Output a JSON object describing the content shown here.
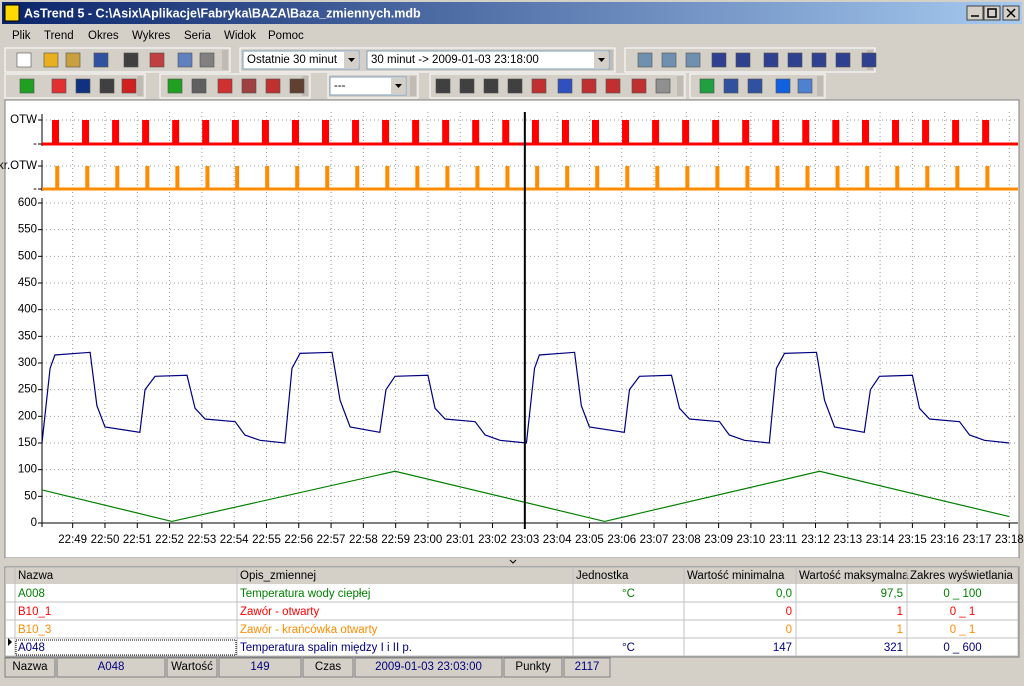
{
  "window": {
    "title": "AsTrend 5 - C:\\Asix\\Aplikacje\\Fabryka\\BAZA\\Baza_zmiennych.mdb"
  },
  "menu": [
    "Plik",
    "Trend",
    "Okres",
    "Wykres",
    "Seria",
    "Widok",
    "Pomoc"
  ],
  "toolbar": {
    "period": "Ostatnie 30 minut",
    "range": "30 minut  ->  2009-01-03  23:18:00",
    "style": "---"
  },
  "chart_data": {
    "type": "line",
    "tracks": [
      {
        "color": "#ff0000",
        "yticks": [
          {
            "value": 0,
            "label": "-"
          },
          {
            "value": 1,
            "label": "OTW"
          }
        ],
        "x": [
          1368.36,
          1369.29,
          1370.22,
          1371.15,
          1372.08,
          1373.01,
          1373.93,
          1374.86,
          1375.79,
          1376.72,
          1377.65,
          1378.58,
          1379.51,
          1380.44,
          1381.37,
          1382.3,
          1383.22,
          1384.15,
          1385.08,
          1386.01,
          1386.94,
          1387.87,
          1388.8,
          1389.73,
          1390.66,
          1391.59,
          1392.52,
          1393.44,
          1394.37,
          1395.3,
          1396.23,
          1397.16
        ],
        "values": [
          1,
          1,
          1,
          1,
          1,
          1,
          1,
          1,
          1,
          1,
          1,
          1,
          1,
          1,
          1,
          1,
          1,
          1,
          1,
          1,
          1,
          1,
          1,
          1,
          1,
          1,
          1,
          1,
          1,
          1,
          1,
          1
        ]
      },
      {
        "color": "#ff8c00",
        "yticks": [
          {
            "value": 0,
            "label": "-"
          },
          {
            "value": 1,
            "label": "kr.OTW"
          }
        ],
        "x": [
          1368.46,
          1369.39,
          1370.32,
          1371.25,
          1372.18,
          1373.11,
          1374.03,
          1374.96,
          1375.89,
          1376.82,
          1377.75,
          1378.68,
          1379.61,
          1380.54,
          1381.47,
          1382.4,
          1383.32,
          1384.25,
          1385.18,
          1386.11,
          1387.04,
          1387.97,
          1388.9,
          1389.83,
          1390.76,
          1391.69,
          1392.62,
          1393.54,
          1394.47,
          1395.4,
          1396.33,
          1397.26
        ],
        "values": [
          1,
          1,
          1,
          1,
          1,
          1,
          1,
          1,
          1,
          1,
          1,
          1,
          1,
          1,
          1,
          1,
          1,
          1,
          1,
          1,
          1,
          1,
          1,
          1,
          1,
          1,
          1,
          1,
          1,
          1,
          1,
          1
        ]
      }
    ],
    "series": [
      {
        "color": "#000080",
        "x": [
          1368.05,
          1368.3,
          1368.45,
          1369.54,
          1369.75,
          1370.0,
          1371.08,
          1371.24,
          1371.55,
          1372.54,
          1372.79,
          1373.1,
          1374.03,
          1374.33,
          1374.8,
          1375.57,
          1375.79,
          1376.04,
          1377.03,
          1377.28,
          1377.59,
          1378.51,
          1378.7,
          1378.98,
          1380.0,
          1380.22,
          1380.53,
          1381.46,
          1381.77,
          1382.23,
          1383.05,
          1383.3,
          1383.45,
          1384.54,
          1384.75,
          1385.0,
          1386.08,
          1386.24,
          1386.55,
          1387.54,
          1387.79,
          1388.1,
          1389.03,
          1389.33,
          1389.8,
          1390.57,
          1390.79,
          1391.04,
          1392.03,
          1392.28,
          1392.59,
          1393.51,
          1393.7,
          1393.98,
          1395.0,
          1395.22,
          1395.53,
          1396.46,
          1396.77,
          1397.23,
          1398.0
        ],
        "values": [
          150,
          290,
          315,
          320,
          220,
          180,
          170,
          250,
          275,
          277,
          215,
          195,
          190,
          165,
          155,
          150,
          290,
          318,
          320,
          230,
          180,
          170,
          250,
          275,
          277,
          215,
          195,
          190,
          165,
          155,
          150,
          290,
          315,
          320,
          220,
          180,
          170,
          250,
          275,
          277,
          215,
          195,
          190,
          165,
          155,
          150,
          290,
          318,
          320,
          230,
          180,
          170,
          250,
          275,
          277,
          215,
          195,
          190,
          165,
          155,
          150
        ]
      },
      {
        "color": "#008000",
        "x": [
          1368.05,
          1372.07,
          1378.98,
          1385.47,
          1392.13,
          1398.0
        ],
        "values": [
          62,
          3,
          97,
          3,
          97,
          12
        ]
      }
    ],
    "xlim": [
      1368.05,
      1398.27
    ],
    "xticks": [
      {
        "value": 1369,
        "label": "22:49"
      },
      {
        "value": 1370,
        "label": "22:50"
      },
      {
        "value": 1371,
        "label": "22:51"
      },
      {
        "value": 1372,
        "label": "22:52"
      },
      {
        "value": 1373,
        "label": "22:53"
      },
      {
        "value": 1374,
        "label": "22:54"
      },
      {
        "value": 1375,
        "label": "22:55"
      },
      {
        "value": 1376,
        "label": "22:56"
      },
      {
        "value": 1377,
        "label": "22:57"
      },
      {
        "value": 1378,
        "label": "22:58"
      },
      {
        "value": 1379,
        "label": "22:59"
      },
      {
        "value": 1380,
        "label": "23:00"
      },
      {
        "value": 1381,
        "label": "23:01"
      },
      {
        "value": 1382,
        "label": "23:02"
      },
      {
        "value": 1383,
        "label": "23:03"
      },
      {
        "value": 1384,
        "label": "23:04"
      },
      {
        "value": 1385,
        "label": "23:05"
      },
      {
        "value": 1386,
        "label": "23:06"
      },
      {
        "value": 1387,
        "label": "23:07"
      },
      {
        "value": 1388,
        "label": "23:08"
      },
      {
        "value": 1389,
        "label": "23:09"
      },
      {
        "value": 1390,
        "label": "23:10"
      },
      {
        "value": 1391,
        "label": "23:11"
      },
      {
        "value": 1392,
        "label": "23:12"
      },
      {
        "value": 1393,
        "label": "23:13"
      },
      {
        "value": 1394,
        "label": "23:14"
      },
      {
        "value": 1395,
        "label": "23:15"
      },
      {
        "value": 1396,
        "label": "23:16"
      },
      {
        "value": 1397,
        "label": "23:17"
      },
      {
        "value": 1398,
        "label": "23:18"
      }
    ],
    "ylim": [
      0,
      600
    ],
    "yticks": [
      0,
      50,
      100,
      150,
      200,
      250,
      300,
      350,
      400,
      450,
      500,
      550,
      600
    ],
    "grid": true,
    "cursor": 1383
  },
  "table": {
    "columns": [
      "Nazwa",
      "Opis_zmiennej",
      "Jednostka",
      "Wartość minimalna",
      "Wartość maksymalna",
      "Zakres wyświetlania"
    ],
    "rows": [
      {
        "color": "#008000",
        "cells": [
          "A008",
          "Temperatura wody ciepłej",
          "°C",
          "0,0",
          "97,5",
          "0 _ 100"
        ]
      },
      {
        "color": "#ff0000",
        "cells": [
          "B10_1",
          "Zawór -  otwarty",
          null,
          "0",
          "1",
          "0 _ 1"
        ]
      },
      {
        "color": "#ff8c00",
        "cells": [
          "B10_3",
          "Zawór -  krańcówka otwarty",
          null,
          "0",
          "1",
          "0 _ 1"
        ]
      },
      {
        "color": "#000080",
        "cells": [
          "A048",
          "Temperatura spalin między I i II p.",
          "°C",
          "147",
          "321",
          "0 _ 600"
        ]
      }
    ]
  },
  "status": [
    "Nazwa",
    "A048",
    "Wartość",
    "149",
    "Czas",
    "2009-01-03 23:03:00",
    "Punkty",
    "2117"
  ]
}
